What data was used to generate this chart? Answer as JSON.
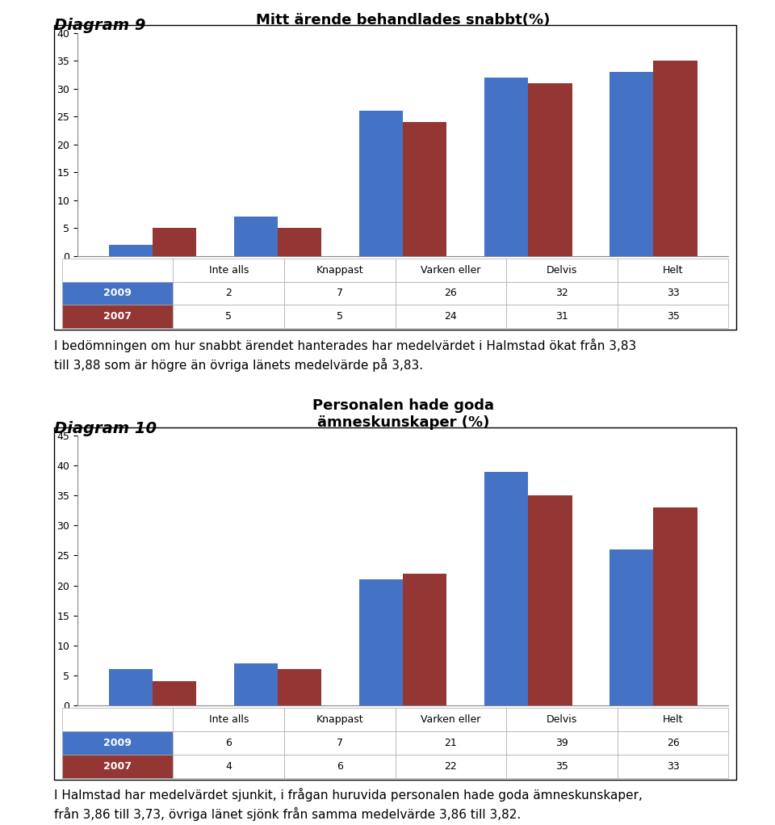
{
  "diagram9": {
    "title": "Mitt ärende behandlades snabbt(%)",
    "categories": [
      "Inte alls",
      "Knappast",
      "Varken eller",
      "Delvis",
      "Helt"
    ],
    "values_2009": [
      2,
      7,
      26,
      32,
      33
    ],
    "values_2007": [
      5,
      5,
      24,
      31,
      35
    ],
    "color_2009": "#4472C4",
    "color_2007": "#943634",
    "ylim": [
      0,
      40
    ],
    "yticks": [
      0,
      5,
      10,
      15,
      20,
      25,
      30,
      35,
      40
    ],
    "label_2009": "2009",
    "label_2007": "2007"
  },
  "diagram10": {
    "title": "Personalen hade goda\nämneskunskaper (%)",
    "categories": [
      "Inte alls",
      "Knappast",
      "Varken eller",
      "Delvis",
      "Helt"
    ],
    "values_2009": [
      6,
      7,
      21,
      39,
      26
    ],
    "values_2007": [
      4,
      6,
      22,
      35,
      33
    ],
    "color_2009": "#4472C4",
    "color_2007": "#943634",
    "ylim": [
      0,
      45
    ],
    "yticks": [
      0,
      5,
      10,
      15,
      20,
      25,
      30,
      35,
      40,
      45
    ],
    "label_2009": "2009",
    "label_2007": "2007"
  },
  "text9": "I bedömningen om hur snabbt ärendet hanterades har medelvärdet i Halmstad ökat från 3,83\ntill 3,88 som är högre än övriga länets medelvärde på 3,83.",
  "text10": "I Halmstad har medelvärdet sjunkit, i frågan huruvida personalen hade goda ämneskunskaper,\nfrån 3,86 till 3,73, övriga länet sjönk från samma medelvärde 3,86 till 3,82.",
  "diagram9_label": "Diagram 9",
  "diagram10_label": "Diagram 10",
  "background_color": "#FFFFFF",
  "color_2009": "#4472C4",
  "color_2007": "#943634",
  "bar_width": 0.35,
  "font_size_title": 13,
  "font_size_axis": 9,
  "font_size_table": 9,
  "font_size_diag_label": 14,
  "font_size_text": 11
}
